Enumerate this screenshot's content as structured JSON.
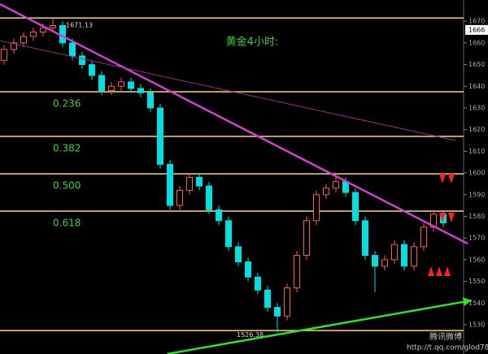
{
  "chart_data": {
    "type": "candlestick",
    "title": "黄金4小时:",
    "ylim": [
      1516.5,
      1679.8
    ],
    "yticks": [
      1530,
      1540,
      1550,
      1560,
      1570,
      1580,
      1590,
      1600,
      1610,
      1620,
      1630,
      1640,
      1650,
      1660,
      1670
    ],
    "up_color": "#ff5a50",
    "down_color": "#00e0e0",
    "open": [
      1652,
      1657,
      1660,
      1663,
      1665,
      1667,
      1668,
      1660,
      1654,
      1650,
      1645,
      1638,
      1640,
      1642,
      1639,
      1637,
      1630,
      1604,
      1585,
      1592,
      1598,
      1594,
      1583,
      1578,
      1566,
      1559,
      1552,
      1546,
      1538,
      1534,
      1547,
      1562,
      1578,
      1590,
      1593,
      1596,
      1591,
      1578,
      1562,
      1557,
      1560,
      1567,
      1557,
      1566,
      1575,
      1581
    ],
    "close": [
      1657,
      1660,
      1663,
      1665,
      1667,
      1668,
      1660,
      1654,
      1650,
      1645,
      1638,
      1640,
      1642,
      1639,
      1637,
      1630,
      1604,
      1585,
      1592,
      1598,
      1594,
      1583,
      1578,
      1566,
      1559,
      1552,
      1546,
      1538,
      1534,
      1547,
      1562,
      1578,
      1590,
      1593,
      1596,
      1591,
      1578,
      1562,
      1557,
      1560,
      1567,
      1557,
      1566,
      1575,
      1581,
      1577
    ],
    "high": [
      1659,
      1662,
      1665,
      1667,
      1669,
      1671.13,
      1670,
      1662,
      1656,
      1652,
      1647,
      1642,
      1644,
      1644,
      1641,
      1639,
      1632,
      1606,
      1594,
      1600,
      1600,
      1596,
      1585,
      1580,
      1568,
      1561,
      1554,
      1548,
      1540,
      1549,
      1564,
      1580,
      1592,
      1595,
      1598,
      1598,
      1593,
      1580,
      1564,
      1562,
      1569,
      1569,
      1568,
      1577,
      1583,
      1583
    ],
    "low": [
      1650,
      1655,
      1658,
      1661,
      1663,
      1665,
      1658,
      1652,
      1648,
      1643,
      1636,
      1636,
      1638,
      1637,
      1635,
      1628,
      1602,
      1583,
      1583,
      1590,
      1592,
      1581,
      1576,
      1564,
      1557,
      1550,
      1544,
      1536,
      1526.38,
      1532,
      1545,
      1560,
      1576,
      1588,
      1591,
      1589,
      1576,
      1560,
      1545,
      1555,
      1558,
      1555,
      1555,
      1564,
      1573,
      1575
    ],
    "levels": [
      1671.5,
      1527.3
    ],
    "level_color": "#ffd080",
    "fibs": [
      {
        "label": "0.236",
        "value": 1637.5
      },
      {
        "label": "0.382",
        "value": 1616.9
      },
      {
        "label": "0.500",
        "value": 1599.6
      },
      {
        "label": "0.618",
        "value": 1582.4
      }
    ],
    "trendlines": [
      {
        "color": "#d040d0",
        "x": [
          -0.42,
          47.5
        ],
        "values": [
          1677.9,
          1567.4
        ]
      },
      {
        "color": "#30e030",
        "x": [
          16.7,
          47.9
        ],
        "values": [
          1516.5,
          1541.2
        ]
      },
      {
        "color": "#9a3090",
        "x": [
          -0.4,
          46.25
        ],
        "values": [
          1661,
          1615
        ]
      }
    ],
    "annotations": [
      {
        "text": "1671.13",
        "index": 5,
        "value": 1671.13
      },
      {
        "text": "1526.38",
        "index": 28,
        "value": 1526.38
      }
    ],
    "last_price": 1666,
    "watermark": "腾讯微博",
    "url": "http://t.qq.com/glod78"
  }
}
